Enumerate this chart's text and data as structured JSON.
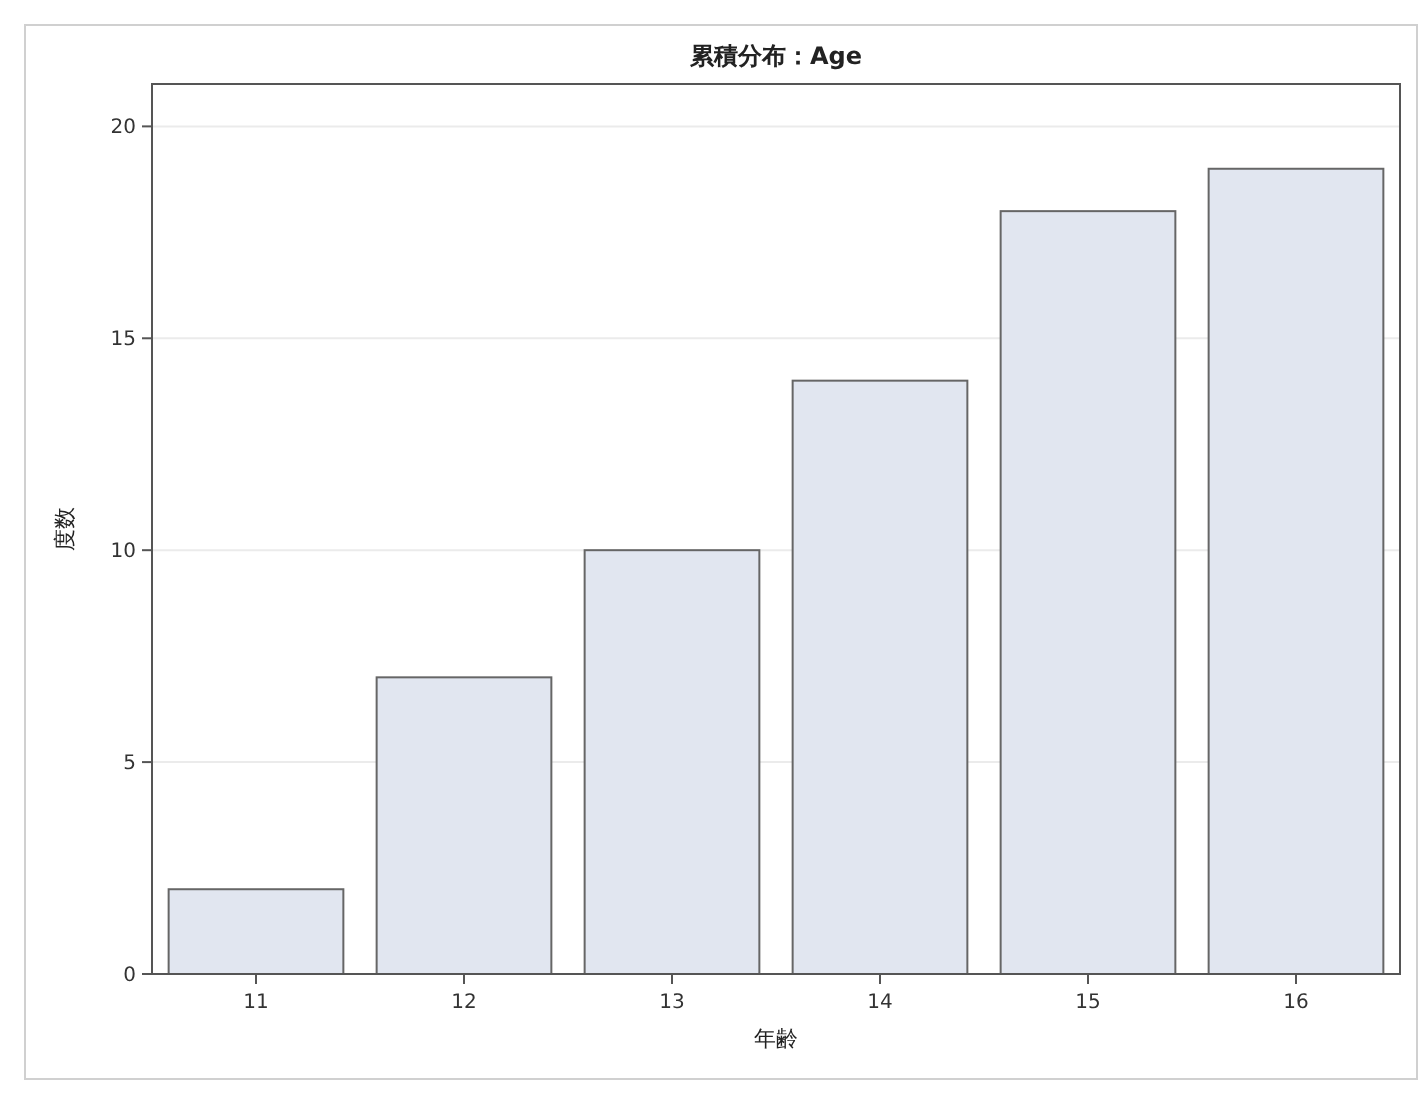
{
  "chart_data": {
    "type": "bar",
    "title": "累積分布：Age",
    "xlabel": "年齢",
    "ylabel": "度数",
    "categories": [
      "11",
      "12",
      "13",
      "14",
      "15",
      "16"
    ],
    "values": [
      2,
      7,
      10,
      14,
      18,
      19
    ],
    "color": "#e1e6f0",
    "ylim": [
      0,
      21
    ],
    "yticks": [
      0,
      5,
      10,
      15,
      20
    ],
    "grid": "y"
  }
}
